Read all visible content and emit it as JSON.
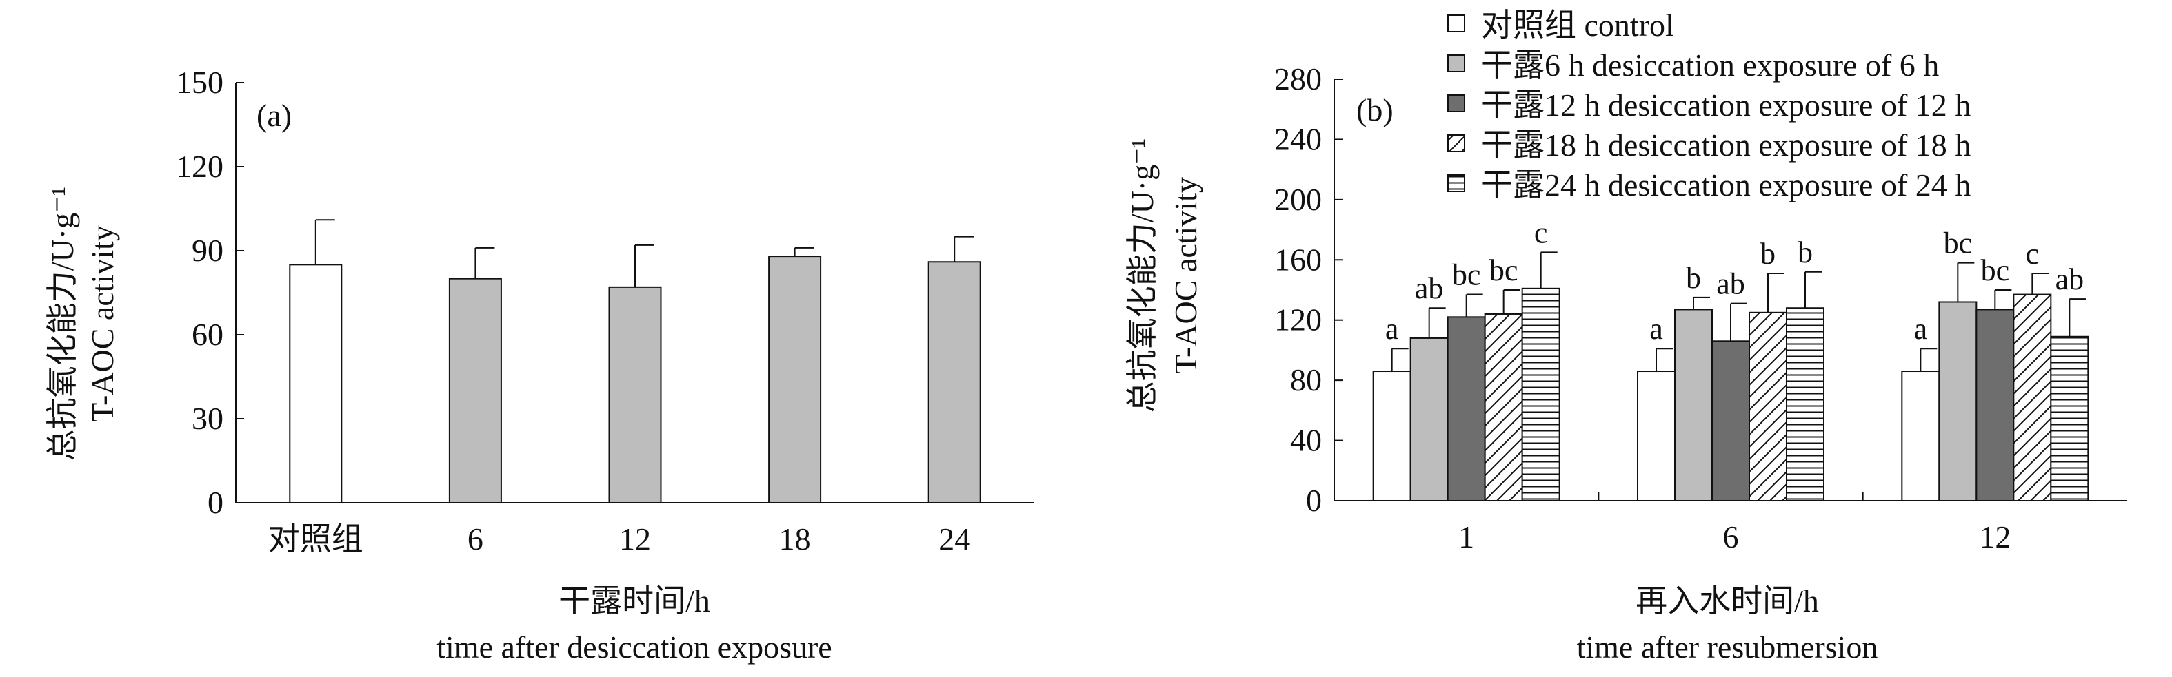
{
  "chart_data": [
    {
      "type": "bar",
      "panel_label": "(a)",
      "categories": [
        "对照组",
        "6",
        "12",
        "18",
        "24"
      ],
      "series": [
        {
          "values": [
            85,
            80,
            77,
            88,
            86
          ],
          "errors": [
            16,
            11,
            15,
            3,
            9
          ]
        }
      ],
      "bar_styles": [
        "white",
        "lightgray",
        "lightgray",
        "lightgray",
        "lightgray"
      ],
      "ylim": [
        0,
        150
      ],
      "yticks": [
        0,
        30,
        60,
        90,
        120,
        150
      ],
      "ylabel_lines": [
        "总抗氧化能力/U·g⁻¹",
        "T-AOC activity"
      ],
      "xlabel_lines": [
        "干露时间/h",
        "time after desiccation exposure"
      ],
      "grid": false
    },
    {
      "type": "bar",
      "panel_label": "(b)",
      "categories": [
        "1",
        "6",
        "12"
      ],
      "series": [
        {
          "name": "对照组 control",
          "style": "white",
          "values": [
            86,
            86,
            86
          ],
          "errors": [
            15,
            15,
            15
          ],
          "labels": [
            "a",
            "a",
            "a"
          ]
        },
        {
          "name": "干露6 h desiccation exposure of 6 h",
          "style": "lightgray",
          "values": [
            108,
            127,
            132
          ],
          "errors": [
            20,
            8,
            26
          ],
          "labels": [
            "ab",
            "b",
            "bc"
          ]
        },
        {
          "name": "干露12 h desiccation exposure of 12 h",
          "style": "darkgray",
          "values": [
            122,
            106,
            127
          ],
          "errors": [
            15,
            25,
            13
          ],
          "labels": [
            "bc",
            "ab",
            "bc"
          ]
        },
        {
          "name": "干露18 h desiccation exposure of 18 h",
          "style": "diagonal",
          "values": [
            124,
            125,
            137
          ],
          "errors": [
            16,
            26,
            14
          ],
          "labels": [
            "bc",
            "b",
            "c"
          ]
        },
        {
          "name": "干露24 h desiccation exposure of 24 h",
          "style": "horizontal",
          "values": [
            141,
            128,
            109
          ],
          "errors": [
            24,
            24,
            25
          ],
          "labels": [
            "c",
            "b",
            "ab"
          ]
        }
      ],
      "ylim": [
        0,
        280
      ],
      "yticks": [
        0,
        40,
        80,
        120,
        160,
        200,
        240,
        280
      ],
      "ylabel_lines": [
        "总抗氧化能力/U·g⁻¹",
        "T-AOC activity"
      ],
      "xlabel_lines": [
        "再入水时间/h",
        "time after resubmersion"
      ],
      "legend_position": "top",
      "grid": false
    }
  ],
  "colors": {
    "white": "#ffffff",
    "lightgray": "#bdbdbd",
    "darkgray": "#6e6e6e",
    "line": "#111111"
  }
}
